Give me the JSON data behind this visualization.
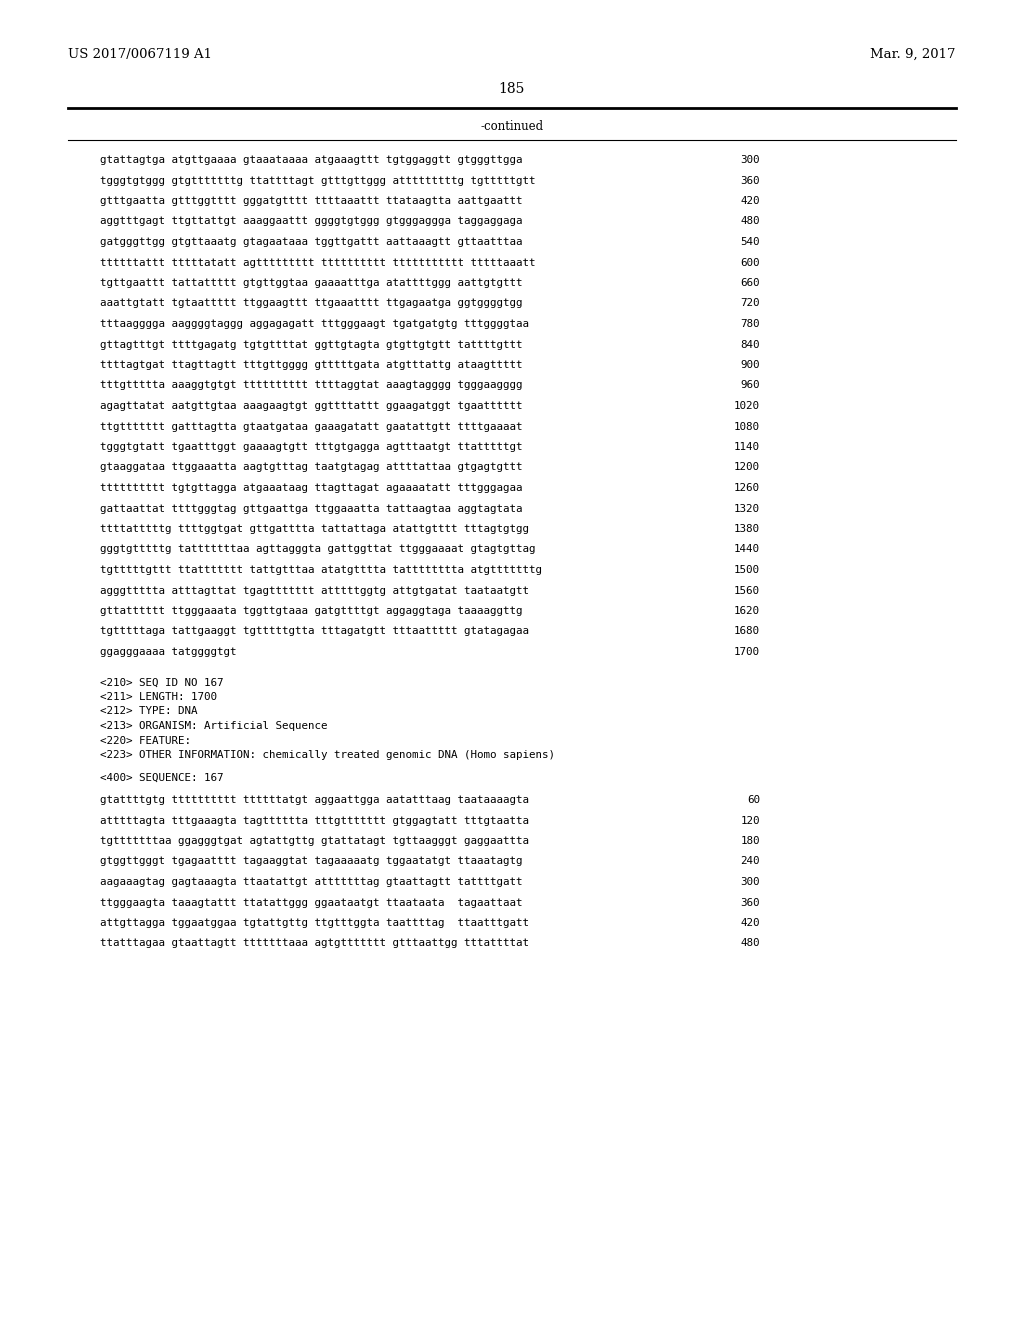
{
  "header_left": "US 2017/0067119 A1",
  "header_right": "Mar. 9, 2017",
  "page_number": "185",
  "continued_label": "-continued",
  "background_color": "#ffffff",
  "text_color": "#000000",
  "seq_lines_top": [
    [
      "gtattagtga atgttgaaaa gtaaataaaa atgaaagttt tgtggaggtt gtgggttgga",
      "300"
    ],
    [
      "tgggtgtggg gtgtttttttg ttattttagt gtttgttggg atttttttttg tgtttttgtt",
      "360"
    ],
    [
      "gtttgaatta gtttggtttt gggatgtttt ttttaaattt ttataagtta aattgaattt",
      "420"
    ],
    [
      "aggtttgagt ttgttattgt aaaggaattt ggggtgtggg gtgggaggga taggaggaga",
      "480"
    ],
    [
      "gatgggttgg gtgttaaatg gtagaataaa tggttgattt aattaaagtt gttaatttaa",
      "540"
    ],
    [
      "ttttttattt tttttatatt agttttttttt tttttttttt ttttttttttt tttttaaatt",
      "600"
    ],
    [
      "tgttgaattt tattattttt gtgttggtaa gaaaatttga atattttggg aattgtgttt",
      "660"
    ],
    [
      "aaattgtatt tgtaattttt ttggaagttt ttgaaatttt ttgagaatga ggtggggtgg",
      "720"
    ],
    [
      "tttaagggga aaggggtaggg aggagagatt tttgggaagt tgatgatgtg tttggggtaa",
      "780"
    ],
    [
      "gttagtttgt ttttgagatg tgtgttttat ggttgtagta gtgttgtgtt tattttgttt",
      "840"
    ],
    [
      "ttttagtgat ttagttagtt tttgttgggg gtttttgata atgtttattg ataagttttt",
      "900"
    ],
    [
      "tttgttttta aaaggtgtgt tttttttttt ttttaggtat aaagtagggg tgggaagggg",
      "960"
    ],
    [
      "agagttatat aatgttgtaa aaagaagtgt ggttttattt ggaagatggt tgaatttttt",
      "1020"
    ],
    [
      "ttgttttttt gatttagtta gtaatgataa gaaagatatt gaatattgtt ttttgaaaat",
      "1080"
    ],
    [
      "tgggtgtatt tgaatttggt gaaaagtgtt tttgtgagga agtttaatgt ttatttttgt",
      "1140"
    ],
    [
      "gtaaggataa ttggaaatta aagtgtttag taatgtagag attttattaa gtgagtgttt",
      "1200"
    ],
    [
      "tttttttttt tgtgttagga atgaaataag ttagttagat agaaaatatt tttgggagaa",
      "1260"
    ],
    [
      "gattaattat ttttgggtag gttgaattga ttggaaatta tattaagtaa aggtagtata",
      "1320"
    ],
    [
      "ttttatttttg ttttggtgat gttgatttta tattattaga atattgtttt tttagtgtgg",
      "1380"
    ],
    [
      "gggtgtttttg tatttttttaa agttagggta gattggttat ttgggaaaat gtagtgttag",
      "1440"
    ],
    [
      "tgtttttgttt ttattttttt tattgtttaa atatgtttta tatttttttta atgtttttttg",
      "1500"
    ],
    [
      "agggttttta atttagttat tgagttttttt atttttggtg attgtgatat taataatgtt",
      "1560"
    ],
    [
      "gttatttttt ttgggaaata tggttgtaaa gatgttttgt aggaggtaga taaaaggttg",
      "1620"
    ],
    [
      "tgtttttaga tattgaaggt tgtttttgtta tttagatgtt tttaattttt gtatagagaa",
      "1680"
    ],
    [
      "ggagggaaaa tatggggtgt",
      "1700"
    ]
  ],
  "meta_lines": [
    "<210> SEQ ID NO 167",
    "<211> LENGTH: 1700",
    "<212> TYPE: DNA",
    "<213> ORGANISM: Artificial Sequence",
    "<220> FEATURE:",
    "<223> OTHER INFORMATION: chemically treated genomic DNA (Homo sapiens)"
  ],
  "seq_label": "<400> SEQUENCE: 167",
  "seq_lines_bottom": [
    [
      "gtattttgtg tttttttttt ttttttatgt aggaattgga aatatttaag taataaaagta",
      "60"
    ],
    [
      "atttttagta tttgaaagta tagtttttta tttgttttttt gtggagtatt tttgtaatta",
      "120"
    ],
    [
      "tgtttttttaa ggagggtgat agtattgttg gtattatagt tgttaagggt gaggaattta",
      "180"
    ],
    [
      "gtggttgggt tgagaatttt tagaaggtat tagaaaaatg tggaatatgt ttaaatagtg",
      "240"
    ],
    [
      "aagaaagtag gagtaaagta ttaatattgt atttttttag gtaattagtt tattttgatt",
      "300"
    ],
    [
      "ttgggaagta taaagtattt ttatattggg ggaataatgt ttaataata  tagaattaat",
      "360"
    ],
    [
      "attgttagga tggaatggaa tgtattgttg ttgtttggta taattttag  ttaatttgatt",
      "420"
    ],
    [
      "ttatttagaa gtaattagtt tttttttaaa agtgttttttt gtttaattgg tttattttat",
      "480"
    ]
  ]
}
